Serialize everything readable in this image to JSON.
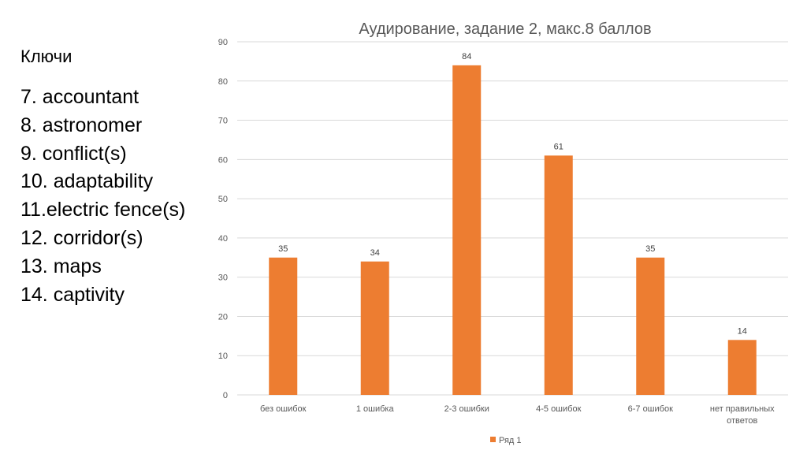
{
  "keys": {
    "title": "Ключи",
    "items": [
      "7. accountant",
      "8. astronomer",
      "9. conflict(s)",
      "10. adaptability",
      "11.electric fence(s)",
      "12. corridor(s)",
      "13. maps",
      "14. captivity"
    ]
  },
  "chart_data": {
    "type": "bar",
    "title": "Аудирование, задание 2, макс.8 баллов",
    "categories": [
      [
        "без ошибок"
      ],
      [
        "1 ошибка"
      ],
      [
        "2-3 ошибки"
      ],
      [
        "4-5 ошибок"
      ],
      [
        "6-7 ошибок"
      ],
      [
        "нет правильных",
        "ответов"
      ]
    ],
    "series": [
      {
        "name": "Ряд 1",
        "values": [
          35,
          34,
          84,
          61,
          35,
          14
        ],
        "color": "#ED7D31"
      }
    ],
    "ylim": [
      0,
      90
    ],
    "yticks": [
      0,
      10,
      20,
      30,
      40,
      50,
      60,
      70,
      80,
      90
    ],
    "grid": true,
    "data_labels": true,
    "legend": "bottom"
  }
}
